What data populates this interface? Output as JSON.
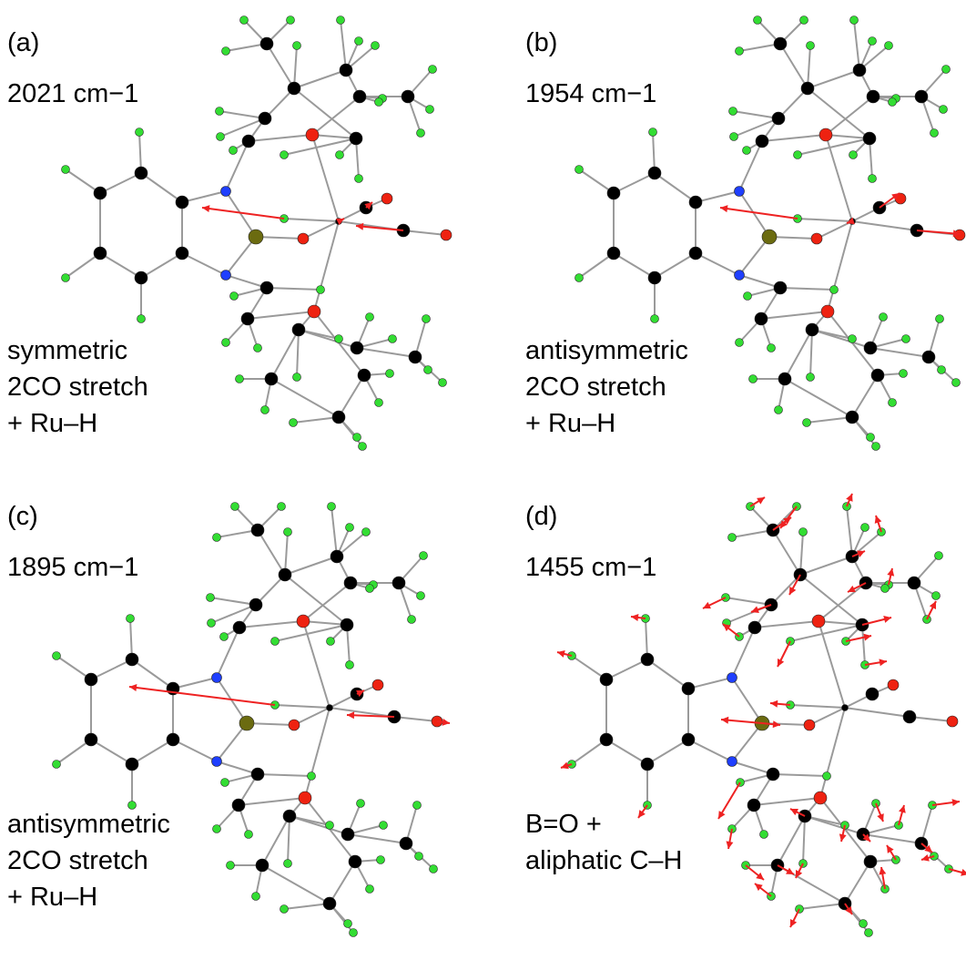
{
  "panels": [
    {
      "label": "(a)",
      "freq": "2021 cm−1",
      "desc": [
        "symmetric",
        "2CO stretch",
        "+ Ru–H"
      ],
      "mode": "sym"
    },
    {
      "label": "(b)",
      "freq": "1954 cm−1",
      "desc": [
        "antisymmetric",
        "2CO stretch",
        "+ Ru–H"
      ],
      "mode": "anti"
    },
    {
      "label": "(c)",
      "freq": "1895 cm−1",
      "desc": [
        "antisymmetric",
        "2CO stretch",
        "+ Ru–H"
      ],
      "mode": "anti2"
    },
    {
      "label": "(d)",
      "freq": "1455 cm−1",
      "desc": [
        "B=O +",
        "aliphatic C–H"
      ],
      "mode": "bo"
    }
  ],
  "colors": {
    "carbon": "#000000",
    "hydrogen": "#33dd33",
    "nitrogen": "#1f3fff",
    "oxygen": "#ee2211",
    "boron": "#6b6b10",
    "bond": "#9a9a9a",
    "vector": "#ee2222"
  }
}
